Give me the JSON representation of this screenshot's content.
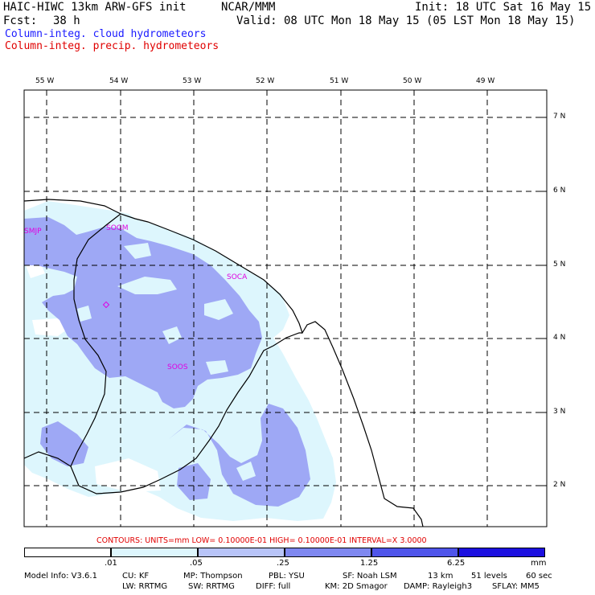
{
  "header": {
    "model": "HAIC-HIWC 13km ARW-GFS init",
    "org": "NCAR/MMM",
    "init": "Init: 18 UTC Sat 16 May 15",
    "fcst_label": "Fcst:",
    "fcst_value": "38 h",
    "valid": "Valid: 08 UTC Mon 18 May 15 (05 LST Mon 18 May 15)",
    "field_cloud": "Column-integ. cloud hydrometeors",
    "field_precip": "Column-integ. precip. hydrometeors"
  },
  "map": {
    "lon_labels": [
      "55 W",
      "54 W",
      "53 W",
      "52 W",
      "51 W",
      "50 W",
      "49 W"
    ],
    "lat_labels": [
      "7 N",
      "6 N",
      "5 N",
      "4 N",
      "3 N",
      "2 N"
    ],
    "stations": [
      "SMJP",
      "SOGM",
      "SOCA",
      "SOOS"
    ],
    "colors": {
      "light": "#ddf6fd",
      "medium": "#9ea8f5",
      "gridline": "#000000",
      "boundary": "#000000"
    }
  },
  "contours_text": "CONTOURS:  UNITS=mm  LOW= 0.10000E-01  HIGH= 0.10000E-01  INTERVAL=X  3.0000",
  "colorbar": {
    "ticks": [
      ".01",
      ".05",
      ".25",
      "1.25",
      "6.25"
    ],
    "unit": "mm",
    "colors": [
      "#ffffff",
      "#ddf6fd",
      "#b8c4f8",
      "#7f88f0",
      "#4f55ea",
      "#1c10e0"
    ]
  },
  "footer": {
    "model_info": "Model Info: V3.6.1",
    "cu": "CU: KF",
    "mp": "MP: Thompson",
    "pbl": "PBL: YSU",
    "sf": "SF: Noah LSM",
    "res": "13 km",
    "levels": "51 levels",
    "dt": "60 sec",
    "lw": "LW: RRTMG",
    "sw": "SW: RRTMG",
    "diff": "DIFF: full",
    "km": "KM: 2D Smagor",
    "damp": "DAMP: Rayleigh3",
    "sflay": "SFLAY: MM5"
  }
}
